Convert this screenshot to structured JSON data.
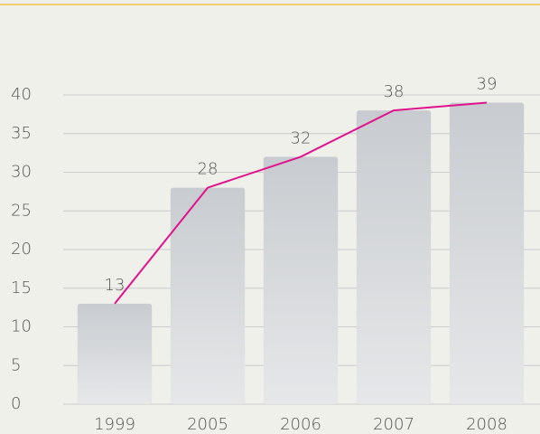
{
  "chart_data": {
    "type": "bar",
    "categories": [
      "1999",
      "2005",
      "2006",
      "2007",
      "2008"
    ],
    "values": [
      13,
      28,
      32,
      38,
      39
    ],
    "color": "#c8ccd0",
    "line_color": "#e0138c",
    "ylim": [
      0,
      40
    ],
    "yticks": [
      0,
      5,
      10,
      15,
      20,
      25,
      30,
      35,
      40
    ],
    "grid": true
  }
}
